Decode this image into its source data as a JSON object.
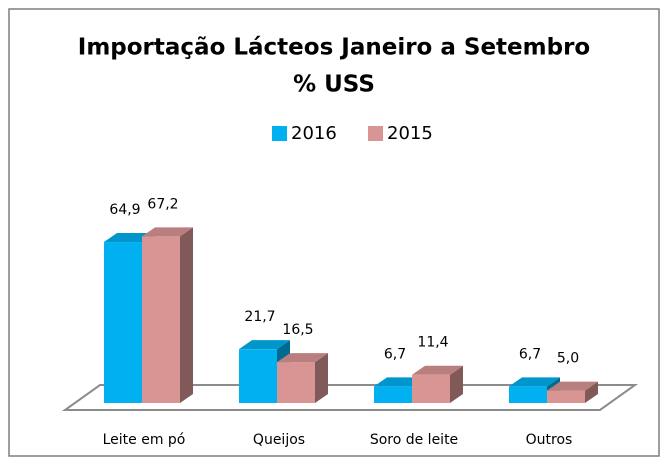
{
  "chart_data": {
    "type": "bar3d",
    "title": "Importação Lácteos Janeiro a Setembro",
    "subtitle": "% USS",
    "categories": [
      "Leite em pó",
      "Queijos",
      "Soro de leite",
      "Outros"
    ],
    "series": [
      {
        "name": "2016",
        "color": "#00b0f0",
        "values": [
          64.9,
          21.7,
          6.7,
          6.7
        ],
        "value_labels": [
          "64,9",
          "21,7",
          "6,7",
          "6,7"
        ]
      },
      {
        "name": "2015",
        "color": "#d99594",
        "values": [
          67.2,
          16.5,
          11.4,
          5.0
        ],
        "value_labels": [
          "67,2",
          "16,5",
          "11,4",
          "5,0"
        ]
      }
    ],
    "legend": "top"
  }
}
